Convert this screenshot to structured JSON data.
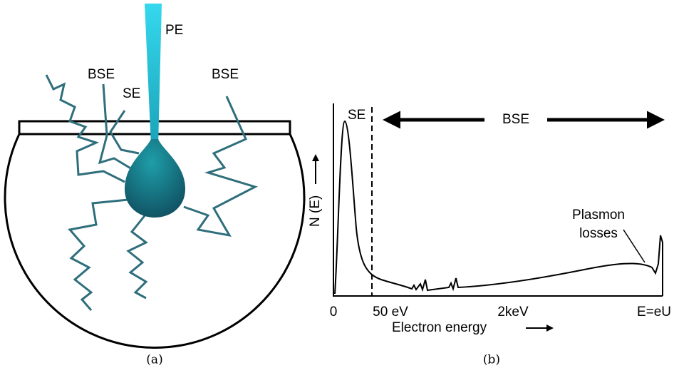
{
  "panel_a": {
    "caption": "(a)",
    "labels": {
      "pe": "PE",
      "bse_left": "BSE",
      "se": "SE",
      "bse_right": "BSE"
    }
  },
  "panel_b": {
    "caption": "(b)",
    "se": "SE",
    "bse": "BSE",
    "y_label": "N (E)",
    "x_label": "Electron energy",
    "x_labels": [
      "0",
      "50 eV",
      "2keV",
      "E=eU"
    ],
    "annotation_lines": [
      "Plasmon",
      "losses"
    ]
  }
}
